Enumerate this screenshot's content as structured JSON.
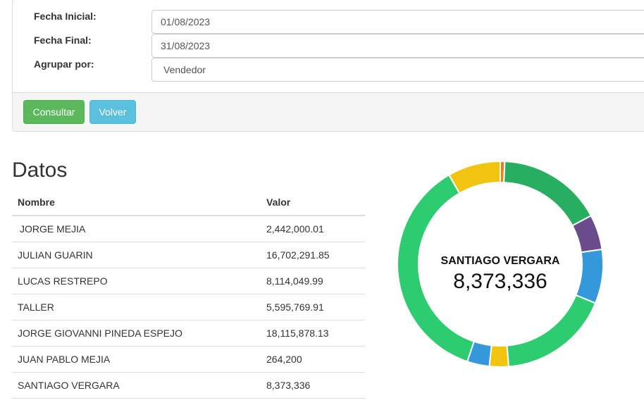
{
  "filters": {
    "start_date_label": "Fecha Inicial:",
    "start_date_value": "01/08/2023",
    "end_date_label": "Fecha Final:",
    "end_date_value": "31/08/2023",
    "group_by_label": "Agrupar por:",
    "group_by_value": "Vendedor"
  },
  "buttons": {
    "consultar": "Consultar",
    "volver": "Volver"
  },
  "section_title": "Datos",
  "table": {
    "headers": [
      "Nombre",
      "Valor"
    ],
    "rows": [
      {
        "name": "JORGE MEJIA",
        "value": "2,442,000.01"
      },
      {
        "name": "JULIAN GUARIN",
        "value": "16,702,291.85"
      },
      {
        "name": "LUCAS RESTREPO",
        "value": "8,114,049.99"
      },
      {
        "name": "TALLER",
        "value": "5,595,769.91"
      },
      {
        "name": "JORGE GIOVANNI PINEDA ESPEJO",
        "value": "18,115,878.13"
      },
      {
        "name": "JUAN PABLO MEJIA",
        "value": "264,200"
      },
      {
        "name": "SANTIAGO VERGARA",
        "value": "8,373,336"
      }
    ]
  },
  "chart_data": {
    "type": "pie",
    "style": "doughnut",
    "center_label": "SANTIAGO VERGARA",
    "center_value": "8,373,336",
    "slices": [
      {
        "value": 0.7,
        "color": "#e67e22"
      },
      {
        "value": 16.5,
        "color": "#27ae60"
      },
      {
        "value": 5.5,
        "color": "#6a4c8c"
      },
      {
        "value": 8.5,
        "color": "#3498db"
      },
      {
        "value": 17.5,
        "color": "#2ecc71"
      },
      {
        "value": 3.0,
        "color": "#f1c40f"
      },
      {
        "value": 3.5,
        "color": "#3498db"
      },
      {
        "value": 36.5,
        "color": "#2ecc71"
      },
      {
        "value": 8.3,
        "color": "#f1c40f"
      }
    ]
  }
}
